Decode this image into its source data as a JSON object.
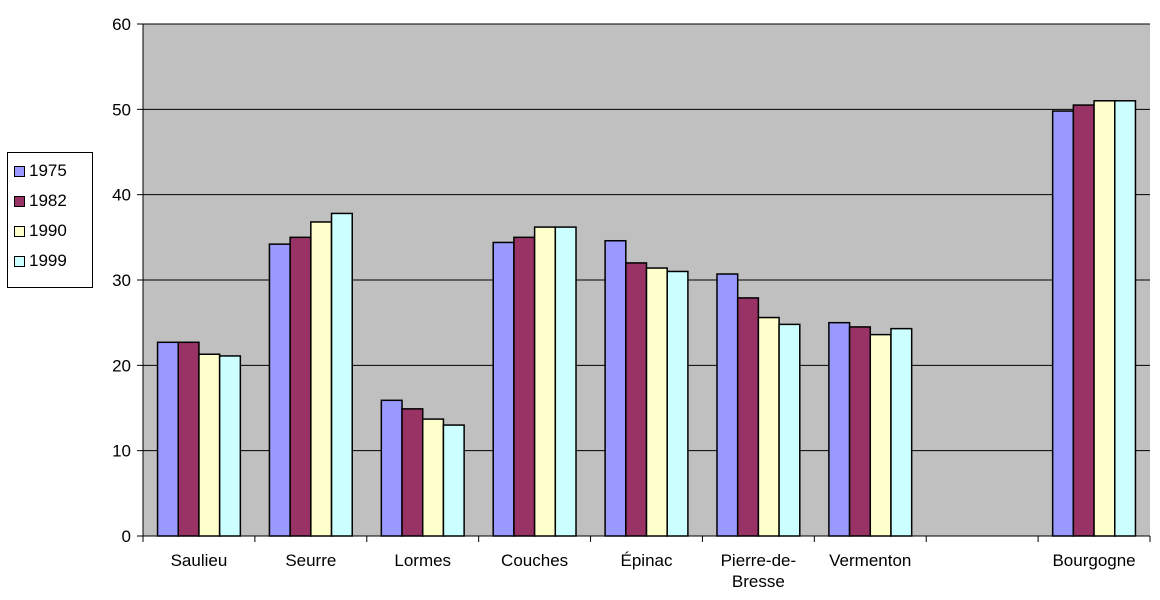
{
  "chart_data": {
    "type": "bar",
    "categories": [
      "Saulieu",
      "Seurre",
      "Lormes",
      "Couches",
      "Épinac",
      "Pierre-de-Bresse",
      "Vermenton",
      "",
      "Bourgogne"
    ],
    "category_lines": [
      [
        "Saulieu"
      ],
      [
        "Seurre"
      ],
      [
        "Lormes"
      ],
      [
        "Couches"
      ],
      [
        "Épinac"
      ],
      [
        "Pierre-de-",
        "Bresse"
      ],
      [
        "Vermenton"
      ],
      [],
      [
        "Bourgogne"
      ]
    ],
    "series": [
      {
        "name": "1975",
        "color": "#9999ff",
        "values": [
          22.7,
          34.2,
          15.9,
          34.4,
          34.6,
          30.7,
          25.0,
          null,
          49.8
        ]
      },
      {
        "name": "1982",
        "color": "#993366",
        "values": [
          22.7,
          35.0,
          14.9,
          35.0,
          32.0,
          27.9,
          24.5,
          null,
          50.5
        ]
      },
      {
        "name": "1990",
        "color": "#ffffcc",
        "values": [
          21.3,
          36.8,
          13.7,
          36.2,
          31.4,
          25.6,
          23.6,
          null,
          51.0
        ]
      },
      {
        "name": "1999",
        "color": "#ccffff",
        "values": [
          21.1,
          37.8,
          13.0,
          36.2,
          31.0,
          24.8,
          24.3,
          null,
          51.0
        ]
      }
    ],
    "ylim": [
      0,
      60
    ],
    "yticks": [
      0,
      10,
      20,
      30,
      40,
      50,
      60
    ],
    "plot_background": "#c0c0c0",
    "grid": true,
    "legend_position": "left"
  }
}
